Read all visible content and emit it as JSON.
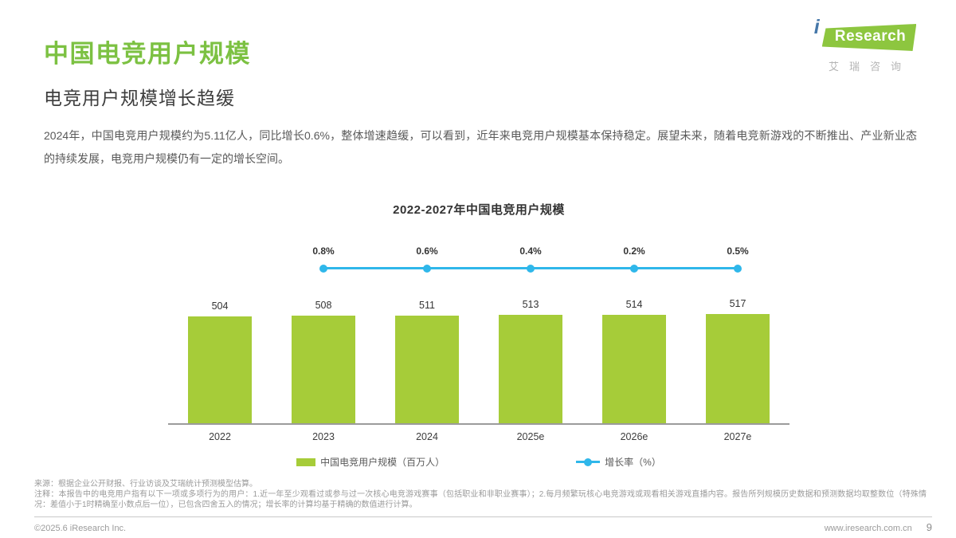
{
  "page": {
    "title": "中国电竞用户规模",
    "subtitle": "电竞用户规模增长趋缓",
    "paragraph": "2024年，中国电竞用户规模约为5.11亿人，同比增长0.6%，整体增速趋缓，可以看到，近年来电竞用户规模基本保持稳定。展望未来，随着电竞新游戏的不断推出、产业新业态的持续发展，电竞用户规模仍有一定的增长空间。",
    "page_number": "9"
  },
  "logo": {
    "i": "i",
    "research": "Research",
    "chinese": "艾瑞咨询"
  },
  "chart_data": {
    "type": "bar",
    "title": "2022-2027年中国电竞用户规模",
    "categories": [
      "2022",
      "2023",
      "2024",
      "2025e",
      "2026e",
      "2027e"
    ],
    "series": [
      {
        "name": "中国电竞用户规模（百万人）",
        "type": "bar",
        "values": [
          504,
          508,
          511,
          513,
          514,
          517
        ],
        "color": "#a6cc39"
      },
      {
        "name": "增长率（%）",
        "type": "line",
        "x": [
          "2023",
          "2024",
          "2025e",
          "2026e",
          "2027e"
        ],
        "values": [
          0.8,
          0.6,
          0.4,
          0.2,
          0.5
        ],
        "labels": [
          "0.8%",
          "0.6%",
          "0.4%",
          "0.2%",
          "0.5%"
        ],
        "color": "#2fb7ea"
      }
    ],
    "ylim": [
      0,
      517
    ],
    "grid": "off",
    "legend_position": "bottom"
  },
  "legend": {
    "bar_label": "中国电竞用户规模（百万人）",
    "line_label": "增长率（%）"
  },
  "footer": {
    "source": "来源：根据企业公开财报、行业访谈及艾瑞统计预测模型估算。",
    "note": "注释：本报告中的电竞用户指有以下一项或多项行为的用户：1.近一年至少观看过或参与过一次核心电竞游戏赛事（包括职业和非职业赛事）；2.每月频繁玩核心电竞游戏或观看相关游戏直播内容。报告所列规模历史数据和预测数据均取整数位（特殊情况：差值小于1时精确至小数点后一位），已包含四舍五入的情况；增长率的计算均基于精确的数值进行计算。",
    "copyright": "©2025.6 iResearch Inc.",
    "website": "www.iresearch.com.cn"
  },
  "colors": {
    "title_green": "#7cc142",
    "bar_green": "#a6cc39",
    "line_blue": "#2fb7ea",
    "logo_green": "#8dc63f",
    "logo_i_blue": "#4577a9"
  }
}
